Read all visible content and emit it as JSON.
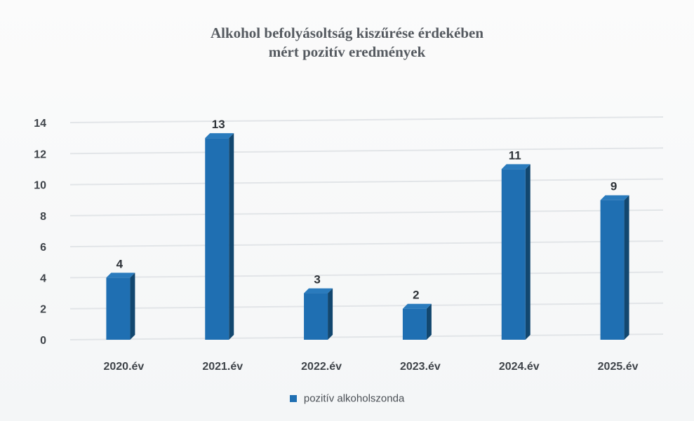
{
  "chart_data": {
    "type": "bar",
    "title_line1": "Alkohol befolyásoltság kiszűrése  érdekében",
    "title_line2": "mért pozitív eredmények",
    "categories": [
      "2020.év",
      "2021.év",
      "2022.év",
      "2023.év",
      "2024.év",
      "2025.év"
    ],
    "series": [
      {
        "name": "pozitív alkoholszonda",
        "values": [
          4,
          13,
          3,
          2,
          11,
          9
        ]
      }
    ],
    "ylim": [
      0,
      14
    ],
    "yticks": [
      0,
      2,
      4,
      6,
      8,
      10,
      12,
      14
    ],
    "grid": true,
    "legend_position": "bottom",
    "bar_color": "#1f6fb2"
  }
}
